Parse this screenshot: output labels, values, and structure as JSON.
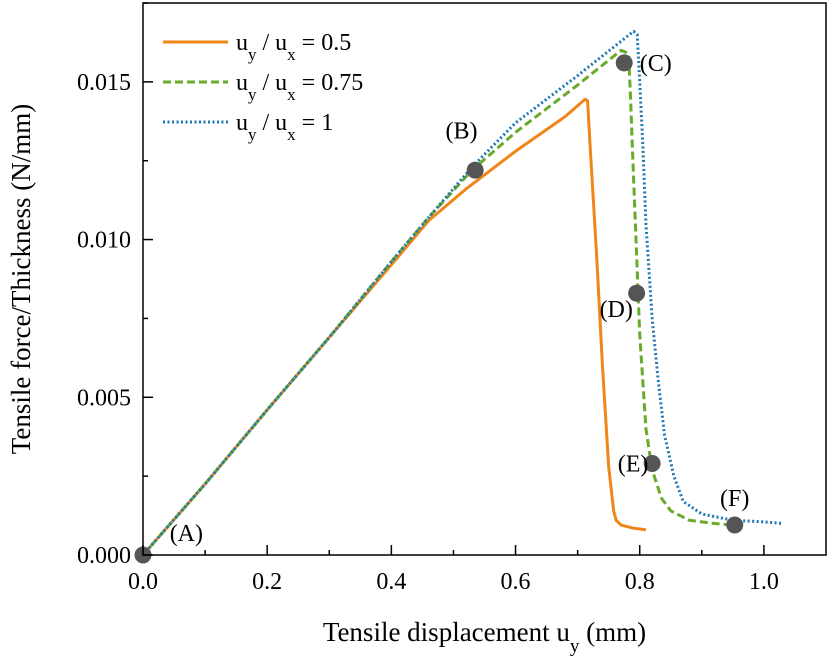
{
  "chart_data": {
    "type": "line",
    "xlabel": "Tensile displacement u",
    "xlabel_sub": "y",
    "xlabel_unit": " (mm)",
    "ylabel": "Tensile force/Thickness (N/mm)",
    "xlim": [
      0.0,
      1.1
    ],
    "ylim": [
      0.0,
      0.0175
    ],
    "xticks": [
      "0.0",
      "0.2",
      "0.4",
      "0.6",
      "0.8",
      "1.0"
    ],
    "yticks": [
      "0.000",
      "0.005",
      "0.010",
      "0.015"
    ],
    "grid": false,
    "legend_position": "top-left",
    "series": [
      {
        "name_parts": [
          "u",
          "y",
          " / u",
          "x",
          " = 0.5"
        ],
        "color": "#f28518",
        "dash": "solid",
        "x": [
          0.0,
          0.1,
          0.2,
          0.3,
          0.4,
          0.46,
          0.52,
          0.6,
          0.68,
          0.712,
          0.716,
          0.72,
          0.73,
          0.74,
          0.75,
          0.758,
          0.762,
          0.77,
          0.79,
          0.81
        ],
        "y": [
          0.0,
          0.00225,
          0.0046,
          0.0069,
          0.0092,
          0.0106,
          0.0116,
          0.0128,
          0.0139,
          0.01445,
          0.0144,
          0.013,
          0.0097,
          0.006,
          0.0028,
          0.0014,
          0.0011,
          0.00095,
          0.00085,
          0.0008
        ]
      },
      {
        "name_parts": [
          "u",
          "y",
          " / u",
          "x",
          " = 0.75"
        ],
        "color": "#6aaa2a",
        "dash": "dashed",
        "x": [
          0.0,
          0.1,
          0.2,
          0.3,
          0.4,
          0.46,
          0.53,
          0.6,
          0.7,
          0.77,
          0.782,
          0.785,
          0.788,
          0.792,
          0.8,
          0.81,
          0.82,
          0.835,
          0.85,
          0.88,
          0.92,
          0.95
        ],
        "y": [
          0.0,
          0.00225,
          0.0046,
          0.0069,
          0.0093,
          0.0107,
          0.0122,
          0.0134,
          0.0149,
          0.016,
          0.0159,
          0.0146,
          0.013,
          0.011,
          0.007,
          0.004,
          0.0027,
          0.0018,
          0.0014,
          0.0011,
          0.001,
          0.00095
        ]
      },
      {
        "name_parts": [
          "u",
          "y",
          " / u",
          "x",
          " = 1"
        ],
        "color": "#1f77b4",
        "dash": "dotted",
        "x": [
          0.0,
          0.1,
          0.2,
          0.3,
          0.4,
          0.46,
          0.53,
          0.6,
          0.7,
          0.79,
          0.796,
          0.8,
          0.805,
          0.81,
          0.82,
          0.83,
          0.84,
          0.855,
          0.87,
          0.9,
          0.95,
          1.0,
          1.03
        ],
        "y": [
          0.0,
          0.00225,
          0.0046,
          0.0069,
          0.0093,
          0.0107,
          0.0123,
          0.0137,
          0.0152,
          0.0166,
          0.0165,
          0.015,
          0.013,
          0.0105,
          0.0075,
          0.0055,
          0.0038,
          0.0025,
          0.0017,
          0.0013,
          0.0011,
          0.00105,
          0.001
        ]
      }
    ],
    "annotations": [
      {
        "label": "(A)",
        "x": 0.0,
        "y": 0.0,
        "marker": true,
        "label_anchor": "start",
        "label_dx": 0.043,
        "label_dy": 0.0007
      },
      {
        "label": "(B)",
        "x": 0.535,
        "y": 0.0122,
        "marker": true,
        "label_anchor": "middle",
        "label_dx": -0.022,
        "label_dy": 0.00125
      },
      {
        "label": "(C)",
        "x": 0.775,
        "y": 0.0156,
        "marker": true,
        "label_anchor": "start",
        "label_dx": 0.025,
        "label_dy": 0.0
      },
      {
        "label": "(D)",
        "x": 0.795,
        "y": 0.0083,
        "marker": true,
        "label_anchor": "end",
        "label_dx": -0.006,
        "label_dy": -0.0005
      },
      {
        "label": "(E)",
        "x": 0.82,
        "y": 0.0029,
        "marker": true,
        "label_anchor": "end",
        "label_dx": -0.006,
        "label_dy": 0.0
      },
      {
        "label": "(F)",
        "x": 0.953,
        "y": 0.00095,
        "marker": true,
        "label_anchor": "middle",
        "label_dx": 0.0,
        "label_dy": 0.00085
      }
    ],
    "marker_color": "#555555"
  }
}
